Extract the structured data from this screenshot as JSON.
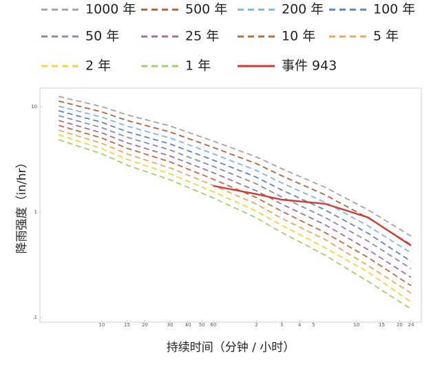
{
  "chart_data": {
    "type": "line",
    "x_label": "持续时间（分钟 / 小时）",
    "y_label": "降雨强度（in/hr）",
    "x": [
      5,
      10,
      15,
      30,
      60,
      120,
      180,
      360,
      720,
      1440
    ],
    "series": [
      {
        "name": "1000 年",
        "color": "#a3a3a3",
        "dashed": true,
        "values": [
          12.5,
          10,
          8.36,
          6.56,
          4.71,
          3.33,
          2.58,
          1.72,
          1.05,
          0.59
        ]
      },
      {
        "name": "500 年",
        "color": "#b0603a",
        "dashed": true,
        "values": [
          11.3,
          8.91,
          7.4,
          5.75,
          4.1,
          2.88,
          2.21,
          1.46,
          0.88,
          0.49
        ]
      },
      {
        "name": "200 年",
        "color": "#7fb6e6",
        "dashed": true,
        "values": [
          10.1,
          7.96,
          6.55,
          5.05,
          3.57,
          2.48,
          1.89,
          1.24,
          0.74,
          0.41
        ]
      },
      {
        "name": "100 年",
        "color": "#5f83c2",
        "dashed": true,
        "values": [
          9.14,
          7.1,
          5.79,
          4.43,
          3.11,
          2.14,
          1.62,
          1.05,
          0.63,
          0.34
        ]
      },
      {
        "name": "50 年",
        "color": "#8b89b3",
        "dashed": true,
        "values": [
          8.22,
          6.32,
          5.13,
          3.88,
          2.71,
          1.85,
          1.39,
          0.89,
          0.53,
          0.29
        ]
      },
      {
        "name": "25 年",
        "color": "#9d709d",
        "dashed": true,
        "values": [
          7.4,
          5.64,
          4.54,
          3.4,
          2.36,
          1.59,
          1.19,
          0.76,
          0.44,
          0.24
        ]
      },
      {
        "name": "10 年",
        "color": "#c2683e",
        "dashed": true,
        "values": [
          6.65,
          5.04,
          4.03,
          2.99,
          2.05,
          1.37,
          1.02,
          0.64,
          0.37,
          0.2
        ]
      },
      {
        "name": "5 年",
        "color": "#f0a55e",
        "dashed": true,
        "values": [
          5.98,
          4.49,
          3.56,
          2.62,
          1.79,
          1.19,
          0.87,
          0.55,
          0.31,
          0.17
        ]
      },
      {
        "name": "2 年",
        "color": "#f7d23e",
        "dashed": true,
        "values": [
          5.4,
          4.0,
          3.16,
          2.3,
          1.56,
          1.02,
          0.75,
          0.46,
          0.27,
          0.14
        ]
      },
      {
        "name": "1 年",
        "color": "#a2cf6a",
        "dashed": true,
        "values": [
          4.85,
          3.57,
          2.79,
          2.02,
          1.36,
          0.88,
          0.64,
          0.39,
          0.22,
          0.12
        ]
      },
      {
        "name": "事件 943",
        "color": "#cd3b33",
        "dashed": false,
        "values": [
          null,
          null,
          null,
          null,
          1.77,
          1.48,
          1.31,
          1.2,
          0.89,
          0.48
        ]
      }
    ],
    "xscale": "log",
    "yscale": "log",
    "xlim": [
      3.7,
      1700
    ],
    "ylim": [
      0.09,
      15
    ],
    "xticks": [
      10,
      15,
      20,
      30,
      40,
      50,
      60,
      {
        "value": 120,
        "label": "2"
      },
      {
        "value": 180,
        "label": "3"
      },
      {
        "value": 240,
        "label": "4"
      },
      {
        "value": 300,
        "label": "5"
      },
      {
        "value": 600,
        "label": "10"
      },
      {
        "value": 900,
        "label": "15"
      },
      {
        "value": 1200,
        "label": "20"
      },
      {
        "value": 1440,
        "label": "24"
      }
    ],
    "yticks": [
      10,
      1,
      {
        "value": 0.1,
        "label": ".1"
      }
    ],
    "legend": "top",
    "grid": false
  }
}
